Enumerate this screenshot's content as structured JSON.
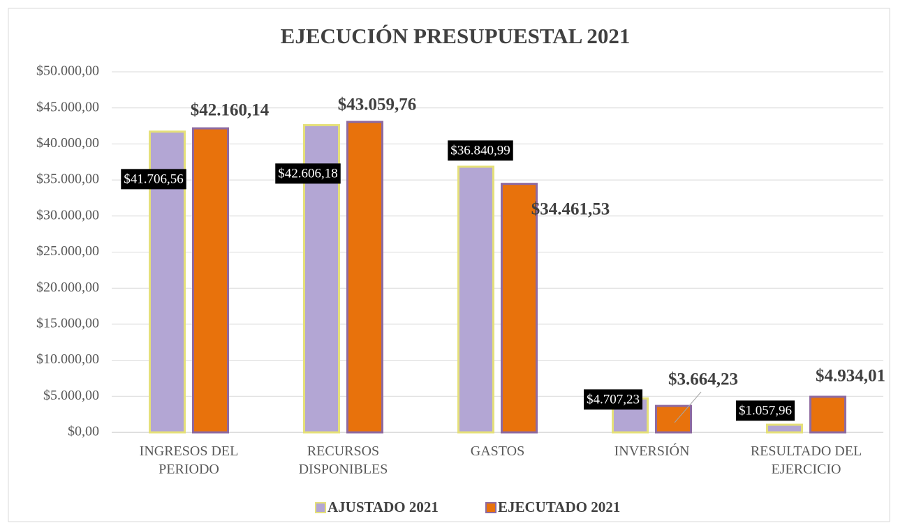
{
  "chart_data": {
    "type": "bar",
    "title": "EJECUCIÓN PRESUPUESTAL 2021",
    "categories": [
      "INGRESOS DEL PERIODO",
      "RECURSOS DISPONIBLES",
      "GASTOS",
      "INVERSIÓN",
      "RESULTADO DEL EJERCICIO"
    ],
    "series": [
      {
        "name": "AJUSTADO 2021",
        "color": "#b3a6d4",
        "values": [
          41706.56,
          42606.18,
          36840.99,
          4707.23,
          1057.96
        ],
        "value_labels": [
          "$41.706,56",
          "$42.606,18",
          "$36.840,99",
          "$4.707,23",
          "$1.057,96"
        ]
      },
      {
        "name": "EJECUTADO 2021",
        "color": "#e8720c",
        "values": [
          42160.14,
          43059.76,
          34461.53,
          3664.23,
          4934.01
        ],
        "value_labels": [
          "$42.160,14",
          "$43.059,76",
          "$34.461,53",
          "$3.664,23",
          "$4.934,01"
        ]
      }
    ],
    "ylim": [
      0,
      50000
    ],
    "yticks": [
      {
        "value": 0,
        "label": "$0,00"
      },
      {
        "value": 5000,
        "label": "$5.000,00"
      },
      {
        "value": 10000,
        "label": "$10.000,00"
      },
      {
        "value": 15000,
        "label": "$15.000,00"
      },
      {
        "value": 20000,
        "label": "$20.000,00"
      },
      {
        "value": 25000,
        "label": "$25.000,00"
      },
      {
        "value": 30000,
        "label": "$30.000,00"
      },
      {
        "value": 35000,
        "label": "$35.000,00"
      },
      {
        "value": 40000,
        "label": "$40.000,00"
      },
      {
        "value": 45000,
        "label": "$45.000,00"
      },
      {
        "value": 50000,
        "label": "$50.000,00"
      }
    ],
    "grid": true
  }
}
